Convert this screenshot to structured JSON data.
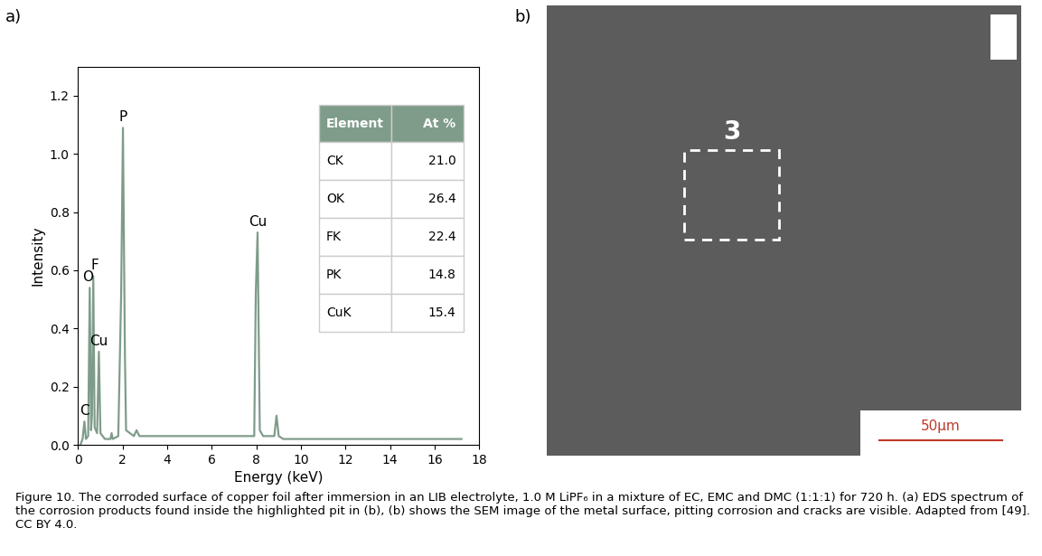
{
  "chart_data": {
    "type": "line",
    "x_label": "Energy (keV)",
    "y_label": "Intensity",
    "x": [
      0.1,
      0.2,
      0.28,
      0.35,
      0.45,
      0.52,
      0.58,
      0.62,
      0.68,
      0.74,
      0.85,
      0.93,
      1.0,
      1.2,
      1.45,
      1.5,
      1.55,
      1.8,
      1.93,
      2.01,
      2.1,
      2.15,
      2.5,
      2.62,
      2.75,
      3.0,
      4.0,
      5.0,
      6.0,
      7.0,
      7.9,
      7.97,
      8.05,
      8.15,
      8.3,
      8.8,
      8.9,
      9.0,
      9.2,
      10.0,
      12.0,
      14.0,
      16.0,
      17.2
    ],
    "values": [
      0.0,
      0.02,
      0.08,
      0.02,
      0.03,
      0.54,
      0.05,
      0.1,
      0.58,
      0.06,
      0.04,
      0.32,
      0.04,
      0.02,
      0.02,
      0.04,
      0.02,
      0.03,
      0.52,
      1.09,
      0.3,
      0.05,
      0.03,
      0.05,
      0.03,
      0.03,
      0.03,
      0.03,
      0.03,
      0.03,
      0.03,
      0.52,
      0.73,
      0.05,
      0.03,
      0.03,
      0.1,
      0.03,
      0.02,
      0.02,
      0.02,
      0.02,
      0.02,
      0.02
    ],
    "color": "#7f9c8b",
    "xlim": [
      0,
      18
    ],
    "xticks": [
      0,
      2,
      4,
      6,
      8,
      10,
      12,
      14,
      16,
      18
    ],
    "ylim": [
      0,
      1.3
    ],
    "yticks": [
      {
        "value": 0.0,
        "label": "0.0"
      },
      {
        "value": 0.2,
        "label": "0.2"
      },
      {
        "value": 0.4,
        "label": "0.4"
      },
      {
        "value": 0.6,
        "label": "0.6"
      },
      {
        "value": 0.8,
        "label": "0.8"
      },
      {
        "value": 1.0,
        "label": "1.0"
      },
      {
        "value": 1.2,
        "label": "1.2"
      }
    ],
    "annotations": [
      {
        "text": "C",
        "x": 0.28,
        "y": 0.08
      },
      {
        "text": "O",
        "x": 0.45,
        "y": 0.54
      },
      {
        "text": "F",
        "x": 0.75,
        "y": 0.58
      },
      {
        "text": "Cu",
        "x": 0.93,
        "y": 0.32
      },
      {
        "text": "P",
        "x": 2.01,
        "y": 1.09
      },
      {
        "text": "Cu",
        "x": 8.05,
        "y": 0.73
      }
    ]
  },
  "panel_labels": [
    "a)",
    "b)"
  ],
  "table": {
    "header": [
      "Element",
      "At %"
    ],
    "rows": [
      [
        "CK",
        "21.0"
      ],
      [
        "OK",
        "26.4"
      ],
      [
        "FK",
        "22.4"
      ],
      [
        "PK",
        "14.8"
      ],
      [
        "CuK",
        "15.4"
      ]
    ]
  },
  "image": {
    "region_label": "3",
    "scale_bar": "50µm"
  },
  "caption": "Figure 10. The corroded surface of copper foil after immersion in an LIB electrolyte, 1.0 M LiPF₆ in a mixture of EC, EMC and DMC (1:1:1) for 720 h. (a) EDS spectrum of the corrosion products found inside the highlighted pit in (b), (b) shows the SEM image of the metal surface, pitting corrosion and cracks are visible. Adapted from [49]. CC BY 4.0."
}
